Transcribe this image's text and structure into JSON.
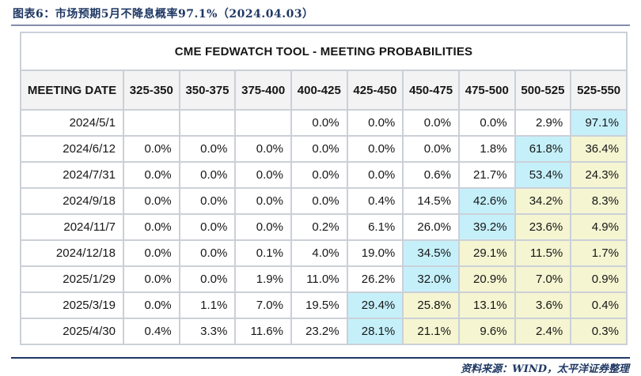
{
  "page": {
    "caption": "图表6：市场预期5月不降息概率97.1%（2024.04.03）",
    "source": "资料来源：WIND，太平洋证券整理"
  },
  "colors": {
    "accent_navy": "#1f3864",
    "highlight_max": "#c5f0fa",
    "highlight_tail": "#f5f5d2",
    "header_bg": "#f3f3f3",
    "cell_border": "#cbd0d8"
  },
  "table": {
    "title": "CME FEDWATCH TOOL - MEETING PROBABILITIES",
    "columns": [
      "MEETING DATE",
      "325-350",
      "350-375",
      "375-400",
      "400-425",
      "425-450",
      "450-475",
      "475-500",
      "500-525",
      "525-550"
    ],
    "rows": [
      {
        "date": "2024/5/1",
        "values": [
          "",
          "",
          "",
          "0.0%",
          "0.0%",
          "0.0%",
          "0.0%",
          "2.9%",
          "97.1%"
        ],
        "styles": [
          "",
          "",
          "",
          "",
          "",
          "",
          "",
          "",
          "max"
        ]
      },
      {
        "date": "2024/6/12",
        "values": [
          "0.0%",
          "0.0%",
          "0.0%",
          "0.0%",
          "0.0%",
          "0.0%",
          "1.8%",
          "61.8%",
          "36.4%"
        ],
        "styles": [
          "",
          "",
          "",
          "",
          "",
          "",
          "",
          "max",
          "tail"
        ]
      },
      {
        "date": "2024/7/31",
        "values": [
          "0.0%",
          "0.0%",
          "0.0%",
          "0.0%",
          "0.0%",
          "0.6%",
          "21.7%",
          "53.4%",
          "24.3%"
        ],
        "styles": [
          "",
          "",
          "",
          "",
          "",
          "",
          "",
          "max",
          "tail"
        ]
      },
      {
        "date": "2024/9/18",
        "values": [
          "0.0%",
          "0.0%",
          "0.0%",
          "0.0%",
          "0.4%",
          "14.5%",
          "42.6%",
          "34.2%",
          "8.3%"
        ],
        "styles": [
          "",
          "",
          "",
          "",
          "",
          "",
          "max",
          "tail",
          "tail"
        ]
      },
      {
        "date": "2024/11/7",
        "values": [
          "0.0%",
          "0.0%",
          "0.0%",
          "0.2%",
          "6.1%",
          "26.0%",
          "39.2%",
          "23.6%",
          "4.9%"
        ],
        "styles": [
          "",
          "",
          "",
          "",
          "",
          "",
          "max",
          "tail",
          "tail"
        ]
      },
      {
        "date": "2024/12/18",
        "values": [
          "0.0%",
          "0.0%",
          "0.1%",
          "4.0%",
          "19.0%",
          "34.5%",
          "29.1%",
          "11.5%",
          "1.7%"
        ],
        "styles": [
          "",
          "",
          "",
          "",
          "",
          "max",
          "tail",
          "tail",
          "tail"
        ]
      },
      {
        "date": "2025/1/29",
        "values": [
          "0.0%",
          "0.0%",
          "1.9%",
          "11.0%",
          "26.2%",
          "32.0%",
          "20.9%",
          "7.0%",
          "0.9%"
        ],
        "styles": [
          "",
          "",
          "",
          "",
          "",
          "max",
          "tail",
          "tail",
          "tail"
        ]
      },
      {
        "date": "2025/3/19",
        "values": [
          "0.0%",
          "1.1%",
          "7.0%",
          "19.5%",
          "29.4%",
          "25.8%",
          "13.1%",
          "3.6%",
          "0.4%"
        ],
        "styles": [
          "",
          "",
          "",
          "",
          "max",
          "tail",
          "tail",
          "tail",
          "tail"
        ]
      },
      {
        "date": "2025/4/30",
        "values": [
          "0.4%",
          "3.3%",
          "11.6%",
          "23.2%",
          "28.1%",
          "21.1%",
          "9.6%",
          "2.4%",
          "0.3%"
        ],
        "styles": [
          "",
          "",
          "",
          "",
          "max",
          "tail",
          "tail",
          "tail",
          "tail"
        ]
      }
    ]
  }
}
